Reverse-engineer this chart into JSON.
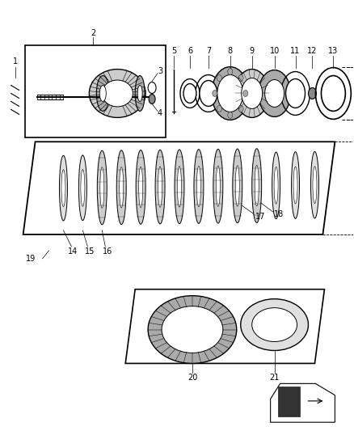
{
  "background_color": "#ffffff",
  "line_color": "#000000",
  "gray_dark": "#888888",
  "gray_mid": "#aaaaaa",
  "gray_light": "#cccccc",
  "gray_lighter": "#e0e0e0",
  "fig_width": 4.38,
  "fig_height": 5.33,
  "dpi": 100
}
